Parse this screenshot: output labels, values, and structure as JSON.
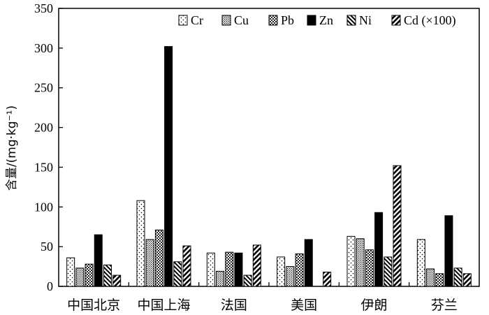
{
  "chart_data": {
    "type": "bar",
    "title": "",
    "xlabel": "",
    "ylabel": "含量/(mg·kg⁻¹)",
    "ylim": [
      0,
      350
    ],
    "yticks": [
      0,
      50,
      100,
      150,
      200,
      250,
      300,
      350
    ],
    "grid": false,
    "legend": "top-right",
    "categories": [
      "中国北京",
      "中国上海",
      "法国",
      "美国",
      "伊朗",
      "芬兰"
    ],
    "series": [
      {
        "name": "Cr",
        "pattern": "dots",
        "values": [
          36,
          108,
          42,
          37,
          63,
          59
        ]
      },
      {
        "name": "Cu",
        "pattern": "dense-dots",
        "values": [
          23,
          59,
          19,
          25,
          60,
          22
        ]
      },
      {
        "name": "Pb",
        "pattern": "checker",
        "values": [
          28,
          71,
          43,
          41,
          46,
          16
        ]
      },
      {
        "name": "Zn",
        "pattern": "solid-black",
        "values": [
          65,
          302,
          42,
          59,
          93,
          89
        ]
      },
      {
        "name": "Ni",
        "pattern": "back-diagonal",
        "values": [
          27,
          31,
          14,
          0,
          37,
          23
        ]
      },
      {
        "name": "Cd (×100)",
        "pattern": "forward-diagonal",
        "values": [
          14,
          51,
          52,
          18,
          152,
          16
        ]
      }
    ]
  }
}
